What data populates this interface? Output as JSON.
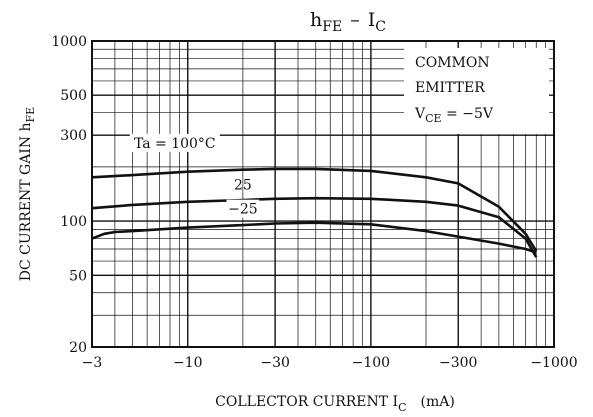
{
  "chart_data": {
    "type": "line",
    "title": {
      "main": "h",
      "sub": "FE",
      "dash": "–",
      "main2": "I",
      "sub2": "C"
    },
    "xlabel": {
      "main": "COLLECTOR CURRENT  I",
      "sub": "C",
      "unit": "(mA)"
    },
    "ylabel": {
      "main": "DC CURRENT GAIN  h",
      "sub": "FE"
    },
    "x_scale": "log",
    "y_scale": "log",
    "xlim": [
      -3,
      -1000
    ],
    "ylim": [
      20,
      1000
    ],
    "x_ticks": [
      {
        "value": -3,
        "label": "−3"
      },
      {
        "value": -10,
        "label": "−10"
      },
      {
        "value": -30,
        "label": "−30"
      },
      {
        "value": -100,
        "label": "−100"
      },
      {
        "value": -300,
        "label": "−300"
      },
      {
        "value": -1000,
        "label": "−1000"
      }
    ],
    "y_ticks": [
      {
        "value": 20,
        "label": "20"
      },
      {
        "value": 50,
        "label": "50"
      },
      {
        "value": 100,
        "label": "100"
      },
      {
        "value": 300,
        "label": "300"
      },
      {
        "value": 500,
        "label": "500"
      },
      {
        "value": 1000,
        "label": "1000"
      }
    ],
    "grid": true,
    "annotation": {
      "line1": "COMMON",
      "line2": "EMITTER",
      "line3_main": "V",
      "line3_sub": "CE",
      "line3_rest": " = −5V"
    },
    "series": [
      {
        "name": "Ta = 100°C",
        "color": "#111111",
        "x": [
          -3,
          -5,
          -10,
          -20,
          -30,
          -50,
          -100,
          -200,
          -300,
          -500,
          -700,
          -800
        ],
        "y": [
          175,
          180,
          188,
          193,
          195,
          195,
          190,
          175,
          162,
          120,
          85,
          68
        ]
      },
      {
        "name": "25",
        "color": "#111111",
        "x": [
          -3,
          -5,
          -10,
          -20,
          -30,
          -50,
          -100,
          -200,
          -300,
          -500,
          -700,
          -800
        ],
        "y": [
          118,
          123,
          128,
          131,
          133,
          134,
          133,
          128,
          122,
          105,
          80,
          63
        ]
      },
      {
        "name": "−25",
        "color": "#111111",
        "x": [
          -3,
          -3.5,
          -4,
          -5,
          -10,
          -20,
          -30,
          -50,
          -100,
          -200,
          -300,
          -500,
          -700,
          -800
        ],
        "y": [
          80,
          85,
          87,
          88,
          92,
          95,
          97,
          98,
          96,
          88,
          82,
          75,
          70,
          67
        ]
      }
    ]
  }
}
